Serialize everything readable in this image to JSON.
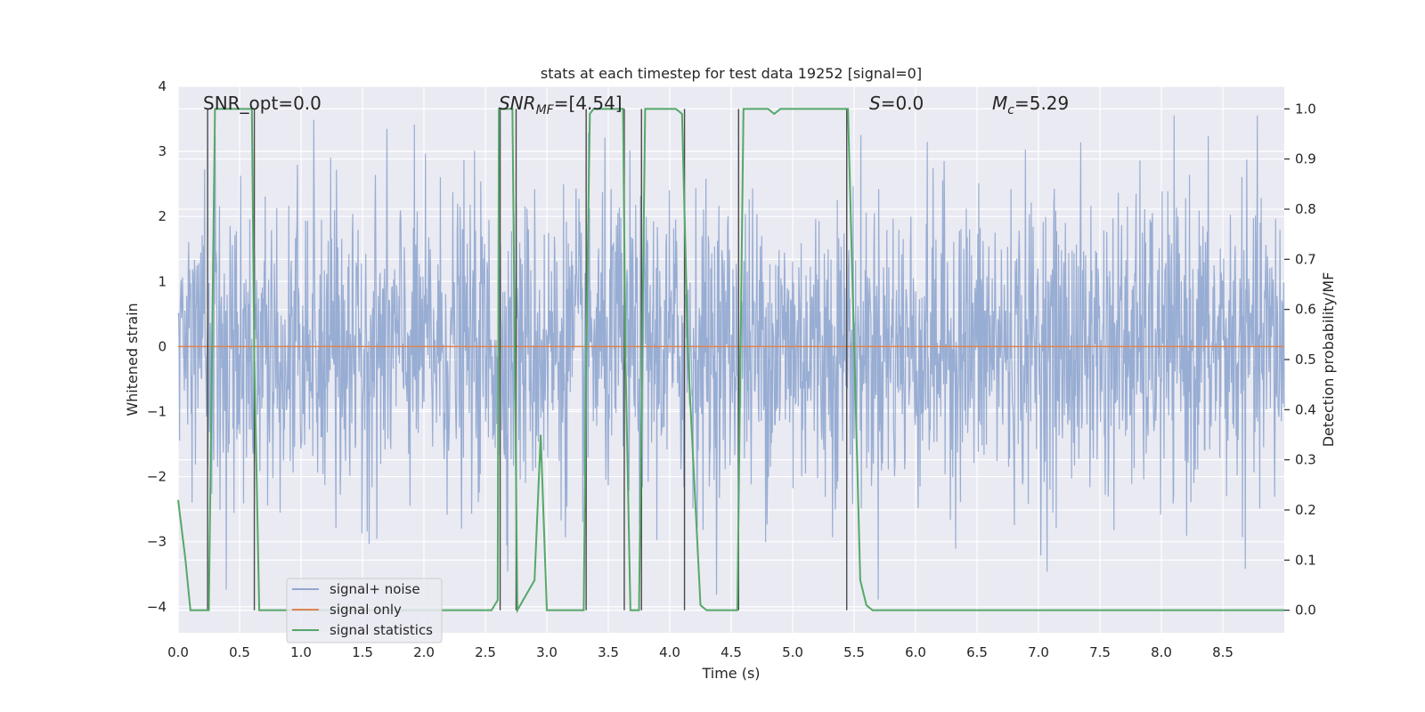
{
  "chart_data": {
    "type": "line",
    "title": "stats at each timestep for test data 19252 [signal=0]",
    "xlabel": "Time (s)",
    "ylabel_left": "Whitened strain",
    "ylabel_right": "Detection probability/MF",
    "xlim": [
      0.0,
      9.0
    ],
    "ylim_left": [
      -4.4,
      4.0
    ],
    "ylim_right": [
      -0.045,
      1.045
    ],
    "xticks": [
      0.0,
      0.5,
      1.0,
      1.5,
      2.0,
      2.5,
      3.0,
      3.5,
      4.0,
      4.5,
      5.0,
      5.5,
      6.0,
      6.5,
      7.0,
      7.5,
      8.0,
      8.5
    ],
    "xtick_labels": [
      "0.0",
      "0.5",
      "1.0",
      "1.5",
      "2.0",
      "2.5",
      "3.0",
      "3.5",
      "4.0",
      "4.5",
      "5.0",
      "5.5",
      "6.0",
      "6.5",
      "7.0",
      "7.5",
      "8.0",
      "8.5"
    ],
    "yticks_left": [
      4,
      3,
      2,
      1,
      0,
      -1,
      -2,
      -3,
      -4
    ],
    "ytick_labels_left": [
      "4",
      "3",
      "2",
      "1",
      "0",
      "−1",
      "−2",
      "−3",
      "−4"
    ],
    "yticks_right": [
      1.0,
      0.9,
      0.8,
      0.7,
      0.6,
      0.5,
      0.4,
      0.3,
      0.2,
      0.1,
      0.0
    ],
    "ytick_labels_right": [
      "1.0",
      "0.9",
      "0.8",
      "0.7",
      "0.6",
      "0.5",
      "0.4",
      "0.3",
      "0.2",
      "0.1",
      "0.0"
    ],
    "annotations": {
      "snr_opt": "SNR_opt=0.0",
      "snr_mf_main": "SNR",
      "snr_mf_sub": "MF",
      "snr_mf_value": "=[4.54]",
      "s_main": "S",
      "s_value": "=0.0",
      "mc_main": "M",
      "mc_sub": "c",
      "mc_value": "=5.29"
    },
    "legend": {
      "position": "lower-left",
      "entries": [
        {
          "label": "signal+ noise",
          "color": "#8fa6cf"
        },
        {
          "label": "signal only",
          "color": "#dd8452"
        },
        {
          "label": "signal statistics",
          "color": "#55a868"
        }
      ]
    },
    "series": [
      {
        "name": "signal+ noise",
        "axis": "left",
        "color": "#8fa6cf",
        "n_samples": 2300,
        "sigma": 1.15,
        "clip": [
          -3.9,
          3.55
        ]
      },
      {
        "name": "signal only",
        "axis": "left",
        "color": "#dd8452",
        "x": [
          0.0,
          9.0
        ],
        "y": [
          0.0,
          0.0
        ]
      },
      {
        "name": "signal statistics",
        "axis": "right",
        "color": "#55a868",
        "x": [
          0.0,
          0.06,
          0.1,
          0.25,
          0.3,
          0.31,
          0.55,
          0.6,
          0.62,
          0.66,
          0.7,
          2.55,
          2.6,
          2.61,
          2.63,
          2.68,
          2.72,
          2.74,
          2.76,
          2.9,
          2.95,
          3.0,
          3.08,
          3.15,
          3.3,
          3.32,
          3.35,
          3.38,
          3.45,
          3.62,
          3.64,
          3.68,
          3.7,
          3.75,
          3.8,
          3.82,
          4.0,
          4.05,
          4.1,
          4.15,
          4.25,
          4.3,
          4.55,
          4.6,
          4.65,
          4.8,
          4.85,
          4.9,
          5.0,
          5.45,
          5.55,
          5.6,
          5.65,
          9.0
        ],
        "y": [
          0.22,
          0.1,
          0.0,
          0.0,
          1.0,
          1.0,
          1.0,
          1.0,
          0.5,
          0.0,
          0.0,
          0.0,
          0.02,
          1.0,
          1.0,
          1.0,
          1.0,
          0.5,
          0.0,
          0.06,
          0.35,
          0.0,
          0.0,
          0.0,
          0.0,
          0.5,
          0.99,
          1.0,
          1.0,
          1.0,
          0.5,
          0.0,
          0.0,
          0.0,
          1.0,
          1.0,
          1.0,
          1.0,
          0.99,
          0.5,
          0.01,
          0.0,
          0.0,
          1.0,
          1.0,
          1.0,
          0.99,
          1.0,
          1.0,
          1.0,
          0.06,
          0.01,
          0.0,
          0.0
        ]
      }
    ],
    "vertical_lines": {
      "color": "#4a4a4a",
      "x": [
        0.24,
        0.62,
        2.62,
        2.75,
        3.32,
        3.63,
        3.77,
        4.12,
        4.56,
        5.44
      ],
      "y_top": 1.0,
      "y_bottom": 0.0
    }
  }
}
